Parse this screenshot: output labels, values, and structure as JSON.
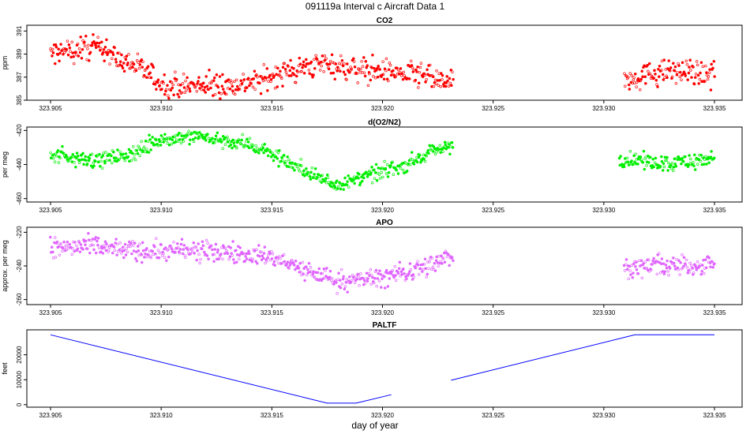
{
  "title": "091119a   Interval c Aircraft Data 1",
  "xlabel": "day of year",
  "chart_data": [
    {
      "type": "scatter",
      "title": "CO2",
      "ylabel": "ppm",
      "xlim": [
        323.905,
        323.935
      ],
      "ylim": [
        385,
        391.5
      ],
      "xticks": [
        "323.905",
        "323.910",
        "323.915",
        "323.920",
        "323.925",
        "323.930",
        "323.935"
      ],
      "yticks": [
        "385",
        "387",
        "389",
        "391"
      ],
      "color": "#ff0000",
      "gaps": [
        [
          323.9232,
          323.9309
        ]
      ],
      "trend": [
        [
          323.905,
          389.0
        ],
        [
          323.9065,
          389.5
        ],
        [
          323.9075,
          389.6
        ],
        [
          323.908,
          388.5
        ],
        [
          323.909,
          388.0
        ],
        [
          323.9095,
          387.2
        ],
        [
          323.91,
          386.4
        ],
        [
          323.9115,
          386.2
        ],
        [
          323.913,
          386.3
        ],
        [
          323.9145,
          386.7
        ],
        [
          323.9155,
          387.4
        ],
        [
          323.9165,
          387.8
        ],
        [
          323.9175,
          388.3
        ],
        [
          323.9185,
          387.7
        ],
        [
          323.92,
          387.5
        ],
        [
          323.921,
          387.3
        ],
        [
          323.922,
          387.0
        ],
        [
          323.9232,
          386.4
        ],
        [
          323.9309,
          386.8
        ],
        [
          323.932,
          387.2
        ],
        [
          323.933,
          387.5
        ],
        [
          323.934,
          387.3
        ],
        [
          323.935,
          387.3
        ]
      ],
      "noise": 0.75
    },
    {
      "type": "scatter",
      "title": "d(O2/N2)",
      "ylabel": "per meg",
      "xlim": [
        323.905,
        323.935
      ],
      "ylim": [
        -462,
        -418
      ],
      "xticks": [
        "323.905",
        "323.910",
        "323.915",
        "323.920",
        "323.925",
        "323.930",
        "323.935"
      ],
      "yticks": [
        "-420",
        "-440",
        "-460"
      ],
      "color": "#00ee00",
      "gaps": [
        [
          323.9232,
          323.9307
        ]
      ],
      "trend": [
        [
          323.905,
          -434
        ],
        [
          323.9065,
          -437
        ],
        [
          323.908,
          -436
        ],
        [
          323.909,
          -432
        ],
        [
          323.91,
          -425
        ],
        [
          323.9115,
          -423
        ],
        [
          323.913,
          -426
        ],
        [
          323.914,
          -428
        ],
        [
          323.915,
          -434
        ],
        [
          323.916,
          -440
        ],
        [
          323.917,
          -447
        ],
        [
          323.918,
          -452
        ],
        [
          323.919,
          -448
        ],
        [
          323.92,
          -444
        ],
        [
          323.921,
          -440
        ],
        [
          323.922,
          -434
        ],
        [
          323.9232,
          -428
        ],
        [
          323.9307,
          -437
        ],
        [
          323.932,
          -438
        ],
        [
          323.933,
          -439
        ],
        [
          323.934,
          -438
        ],
        [
          323.935,
          -436
        ]
      ],
      "noise": 3.2
    },
    {
      "type": "scatter",
      "title": "APO",
      "ylabel": "approx. per meg",
      "xlim": [
        323.905,
        323.935
      ],
      "ylim": [
        -263,
        -217
      ],
      "xticks": [
        "323.905",
        "323.910",
        "323.915",
        "323.920",
        "323.925",
        "323.930",
        "323.935"
      ],
      "yticks": [
        "-220",
        "-240",
        "-260"
      ],
      "color": "#e066ff",
      "gaps": [
        [
          323.9232,
          323.9309
        ]
      ],
      "trend": [
        [
          323.905,
          -229
        ],
        [
          323.907,
          -229
        ],
        [
          323.909,
          -231
        ],
        [
          323.911,
          -231
        ],
        [
          323.913,
          -232
        ],
        [
          323.915,
          -235
        ],
        [
          323.916,
          -240
        ],
        [
          323.917,
          -245
        ],
        [
          323.918,
          -249
        ],
        [
          323.919,
          -248
        ],
        [
          323.92,
          -247
        ],
        [
          323.921,
          -244
        ],
        [
          323.922,
          -240
        ],
        [
          323.9232,
          -234
        ],
        [
          323.9309,
          -242
        ],
        [
          323.932,
          -240
        ],
        [
          323.933,
          -240
        ],
        [
          323.934,
          -240
        ],
        [
          323.935,
          -238
        ]
      ],
      "noise": 4.2
    },
    {
      "type": "line",
      "title": "PALTF",
      "ylabel": "feet",
      "xlim": [
        323.905,
        323.935
      ],
      "ylim": [
        -1000,
        30000
      ],
      "xticks": [
        "323.905",
        "323.910",
        "323.915",
        "323.920",
        "323.925",
        "323.930",
        "323.935"
      ],
      "yticks": [
        "0",
        "10000",
        "20000"
      ],
      "color": "#0000ff",
      "segments": [
        [
          [
            323.905,
            28000
          ],
          [
            323.9175,
            600
          ],
          [
            323.9188,
            600
          ],
          [
            323.9204,
            4000
          ]
        ],
        [
          [
            323.9231,
            9800
          ],
          [
            323.9314,
            28000
          ],
          [
            323.935,
            28000
          ]
        ]
      ]
    }
  ]
}
